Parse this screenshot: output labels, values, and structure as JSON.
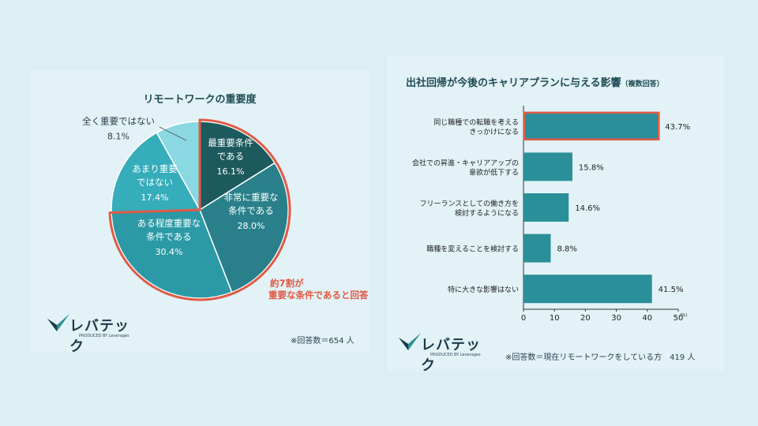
{
  "chart_data": [
    {
      "type": "pie",
      "title": "リモートワークの重要度",
      "slices": [
        {
          "label_lines": [
            "最重要条件",
            "である"
          ],
          "value": 16.1,
          "value_label": "16.1%",
          "color": "#1d5a5e"
        },
        {
          "label_lines": [
            "非常に重要な",
            "条件である"
          ],
          "value": 28.0,
          "value_label": "28.0%",
          "color": "#29808a"
        },
        {
          "label_lines": [
            "ある程度重要な",
            "条件である"
          ],
          "value": 30.4,
          "value_label": "30.4%",
          "color": "#2b9aa6"
        },
        {
          "label_lines": [
            "あまり重要",
            "ではない"
          ],
          "value": 17.4,
          "value_label": "17.4%",
          "color": "#35adbb"
        },
        {
          "label_lines": [
            "全く重要ではない"
          ],
          "value": 8.1,
          "value_label": "8.1%",
          "color": "#8ad8e2"
        }
      ],
      "highlight_annotation": [
        "約7割が",
        "重要な条件であると回答"
      ],
      "highlight_color": "#e05a45",
      "note": "※回答数＝654 人"
    },
    {
      "type": "bar",
      "orientation": "horizontal",
      "title": "出社回帰が今後のキャリアプランに与える影響",
      "title_suffix": "（複数回答）",
      "categories": [
        [
          "同じ職種での転職を考える",
          "きっかけになる"
        ],
        [
          "会社での昇進・キャリアアップの",
          "意欲が低下する"
        ],
        [
          "フリーランスとしての働き方を",
          "検討するようになる"
        ],
        [
          "職種を変えることを検討する"
        ],
        [
          "特に大きな影響はない"
        ]
      ],
      "values": [
        43.7,
        15.8,
        14.6,
        8.8,
        41.5
      ],
      "value_labels": [
        "43.7%",
        "15.8%",
        "14.6%",
        "8.8%",
        "41.5%"
      ],
      "xlim": [
        0,
        50
      ],
      "xticks": [
        0,
        10,
        20,
        30,
        40,
        50
      ],
      "x_unit": "(%)",
      "bar_color": "#2b8f99",
      "highlight_index": 0,
      "highlight_color": "#e05a45",
      "note": "※回答数＝現在リモートワークをしている方　419 人"
    }
  ],
  "brand": {
    "logo_text": "レバテック",
    "logo_sub": "PRODUCED BY Leverages",
    "accent": "#2b8f99"
  }
}
